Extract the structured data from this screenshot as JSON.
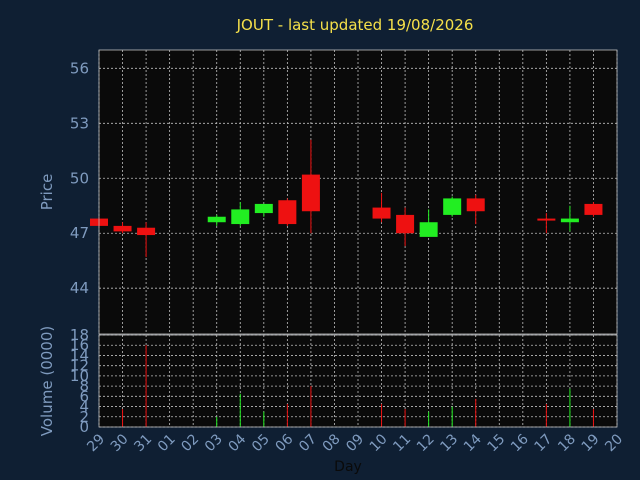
{
  "chart_data": {
    "type": "candlestick",
    "title": "JOUT - last updated 19/08/2026",
    "xlabel": "Day",
    "colors": {
      "background": "#0f1f33",
      "plot_background": "#0a0a0a",
      "up": "#22ee22",
      "down": "#ee1111",
      "axis_text": "#7f9bbf",
      "title": "#f5e04a",
      "grid": "#bfbfbf"
    },
    "price_panel": {
      "ylabel": "Price",
      "ylim": [
        41.5,
        57
      ],
      "yticks": [
        44,
        47,
        50,
        53,
        56
      ],
      "grid": true
    },
    "volume_panel": {
      "ylabel": "Volume (0000)",
      "ylim": [
        0,
        18
      ],
      "yticks": [
        0,
        2,
        4,
        6,
        8,
        10,
        12,
        14,
        16,
        18
      ],
      "grid": true
    },
    "x_labels": [
      "29",
      "30",
      "31",
      "01",
      "02",
      "03",
      "04",
      "05",
      "06",
      "07",
      "08",
      "09",
      "10",
      "11",
      "12",
      "13",
      "14",
      "15",
      "16",
      "17",
      "18",
      "19",
      "20"
    ],
    "candles": [
      {
        "day": "29",
        "open": 47.8,
        "high": 47.9,
        "low": 47.3,
        "close": 47.4,
        "volume": 0.0
      },
      {
        "day": "30",
        "open": 47.4,
        "high": 47.6,
        "low": 47.0,
        "close": 47.1,
        "volume": 3.5
      },
      {
        "day": "31",
        "open": 47.3,
        "high": 47.6,
        "low": 45.7,
        "close": 46.9,
        "volume": 16.0
      },
      {
        "day": "03",
        "open": 47.6,
        "high": 48.0,
        "low": 47.4,
        "close": 47.9,
        "volume": 2.0
      },
      {
        "day": "04",
        "open": 47.5,
        "high": 48.7,
        "low": 47.4,
        "close": 48.3,
        "volume": 6.5
      },
      {
        "day": "05",
        "open": 48.1,
        "high": 48.6,
        "low": 47.9,
        "close": 48.6,
        "volume": 3.0
      },
      {
        "day": "06",
        "open": 48.8,
        "high": 48.9,
        "low": 47.4,
        "close": 47.5,
        "volume": 4.5
      },
      {
        "day": "07",
        "open": 50.2,
        "high": 52.1,
        "low": 47.0,
        "close": 48.2,
        "volume": 8.0
      },
      {
        "day": "10",
        "open": 48.4,
        "high": 49.2,
        "low": 47.6,
        "close": 47.8,
        "volume": 4.5
      },
      {
        "day": "11",
        "open": 48.0,
        "high": 48.4,
        "low": 46.3,
        "close": 47.0,
        "volume": 3.5
      },
      {
        "day": "12",
        "open": 46.8,
        "high": 48.3,
        "low": 46.8,
        "close": 47.6,
        "volume": 3.0
      },
      {
        "day": "13",
        "open": 48.0,
        "high": 49.0,
        "low": 47.9,
        "close": 48.9,
        "volume": 4.0
      },
      {
        "day": "14",
        "open": 48.9,
        "high": 49.1,
        "low": 47.5,
        "close": 48.2,
        "volume": 5.5
      },
      {
        "day": "17",
        "open": 47.8,
        "high": 48.1,
        "low": 47.0,
        "close": 47.7,
        "volume": 4.5
      },
      {
        "day": "18",
        "open": 47.6,
        "high": 48.5,
        "low": 47.1,
        "close": 47.8,
        "volume": 7.5
      },
      {
        "day": "19",
        "open": 48.6,
        "high": 48.7,
        "low": 47.9,
        "close": 48.0,
        "volume": 3.5
      }
    ]
  }
}
